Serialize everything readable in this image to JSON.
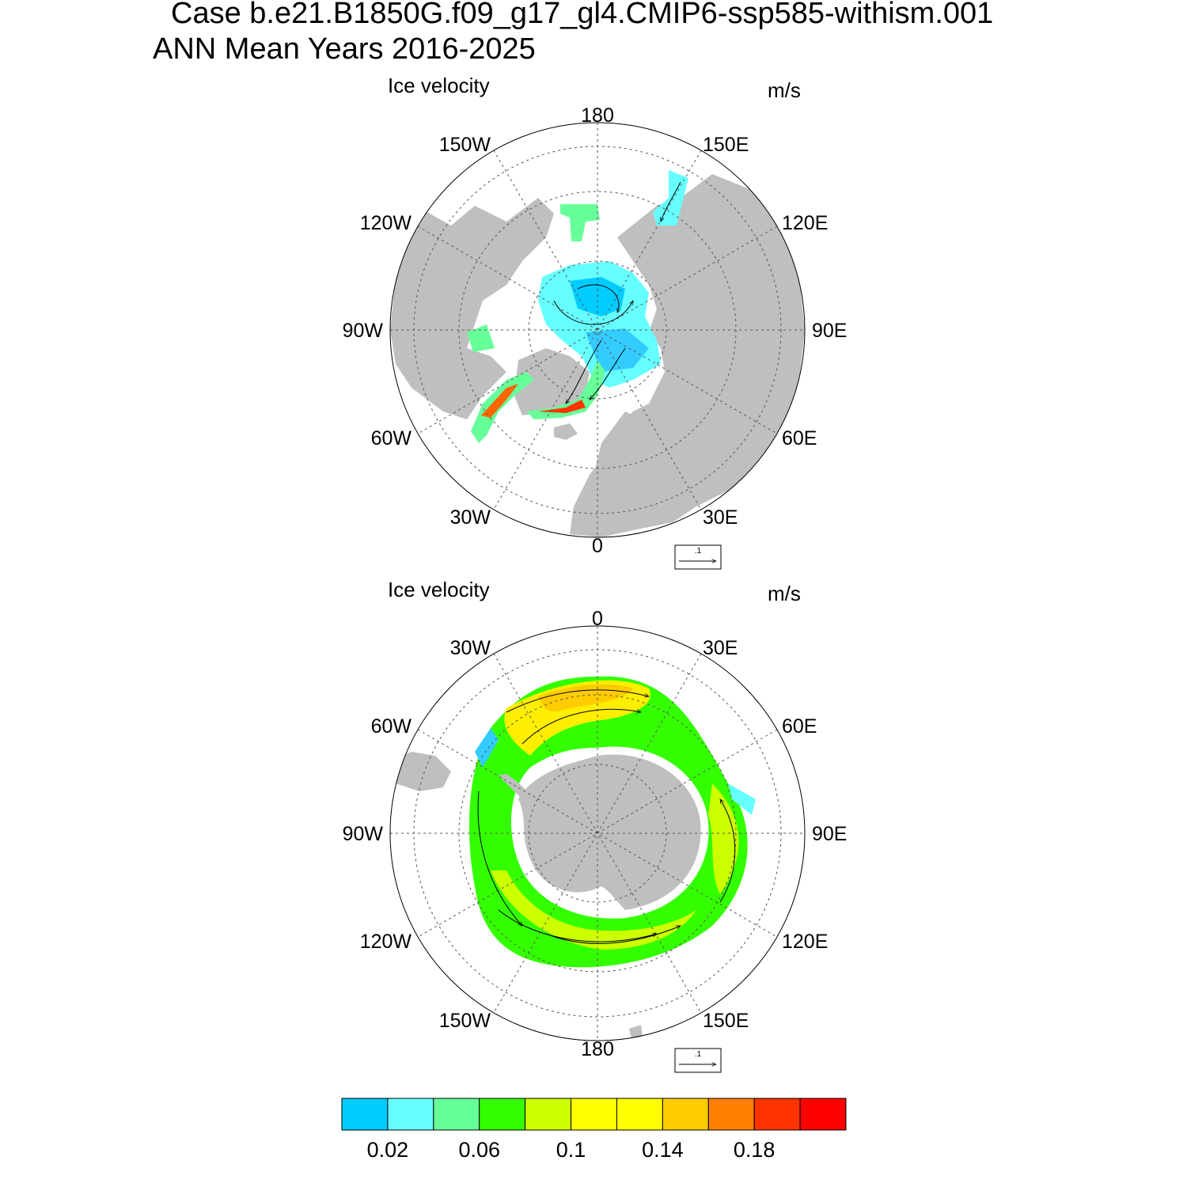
{
  "title": {
    "line1": "Case b.e21.B1850G.f09_g17_gl4.CMIP6-ssp585-withism.001",
    "line2": "ANN Mean   Years 2016-2025"
  },
  "panels": [
    {
      "id": "north",
      "label": "Ice velocity",
      "units": "m/s",
      "lon_labels": {
        "180": "180",
        "150E": "150E",
        "120E": "120E",
        "90E": "90E",
        "60E": "60E",
        "30E": "30E",
        "0": "0",
        "30W": "30W",
        "60W": "60W",
        "90W": "90W",
        "120W": "120W",
        "150W": "150W"
      },
      "ref_vector_label": ".1"
    },
    {
      "id": "south",
      "label": "Ice velocity",
      "units": "m/s",
      "lon_labels": {
        "0": "0",
        "30E": "30E",
        "60E": "60E",
        "90E": "90E",
        "120E": "120E",
        "150E": "150E",
        "180": "180",
        "150W": "150W",
        "120W": "120W",
        "90W": "90W",
        "60W": "60W",
        "30W": "30W"
      },
      "ref_vector_label": ".1"
    }
  ],
  "colorbar": {
    "colors": [
      "#00ccff",
      "#66ffff",
      "#66ff99",
      "#33ff00",
      "#ccff00",
      "#ffff00",
      "#ffff00",
      "#ffcc00",
      "#ff8000",
      "#ff3300",
      "#ff0000"
    ],
    "labels": [
      "0.02",
      "0.06",
      "0.1",
      "0.14",
      "0.18"
    ],
    "label_positions": [
      1,
      3,
      5,
      7,
      9
    ]
  },
  "colors": {
    "land": "#bfbfbf",
    "ice_low": "#33ccff",
    "ice_mid": "#66ff66",
    "ice_high": "#ffee00"
  }
}
